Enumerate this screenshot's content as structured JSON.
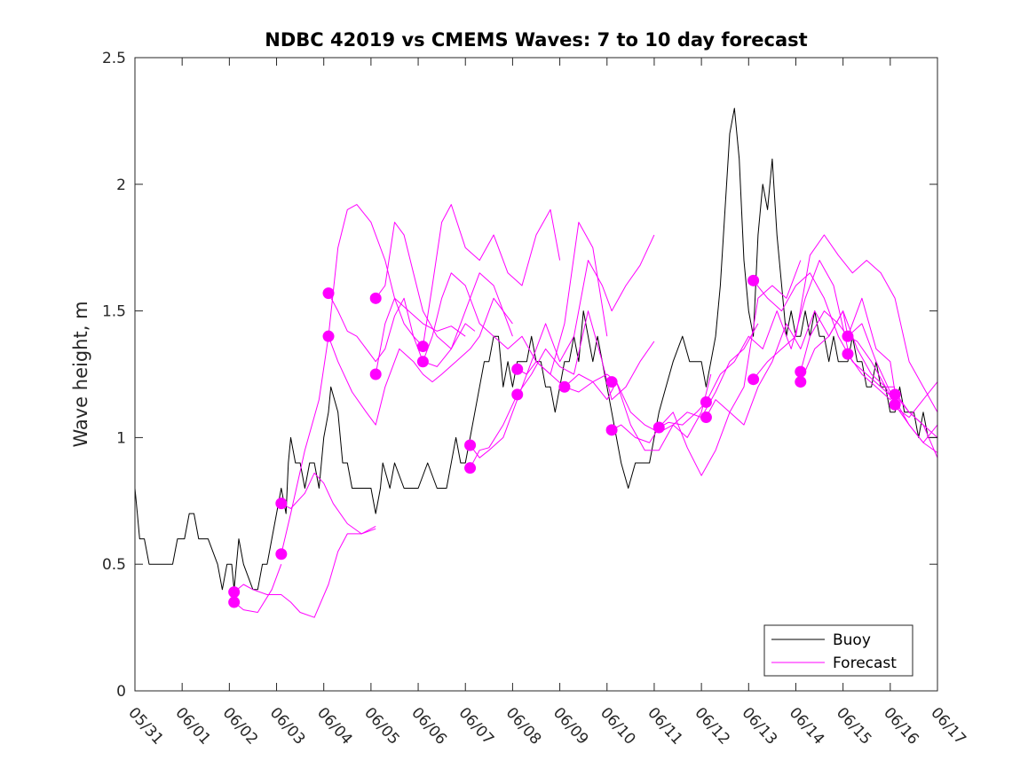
{
  "chart_data": {
    "type": "line",
    "title": "NDBC 42019 vs CMEMS Waves: 7 to 10 day forecast",
    "xlabel": "",
    "ylabel": "Wave height, m",
    "xlim": [
      0,
      17
    ],
    "ylim": [
      0,
      2.5
    ],
    "x_unit": "days since 05/31",
    "x_ticks": [
      0,
      1,
      2,
      3,
      4,
      5,
      6,
      7,
      8,
      9,
      10,
      11,
      12,
      13,
      14,
      15,
      16,
      17
    ],
    "x_tick_labels": [
      "05/31",
      "06/01",
      "06/02",
      "06/03",
      "06/04",
      "06/05",
      "06/06",
      "06/07",
      "06/08",
      "06/09",
      "06/10",
      "06/11",
      "06/12",
      "06/13",
      "06/14",
      "06/15",
      "06/16",
      "06/17"
    ],
    "y_ticks": [
      0,
      0.5,
      1,
      1.5,
      2,
      2.5
    ],
    "y_tick_labels": [
      "0",
      "0.5",
      "1",
      "1.5",
      "2",
      "2.5"
    ],
    "grid": false,
    "legend": {
      "position": "bottom-right",
      "entries": [
        "Buoy",
        "Forecast"
      ]
    },
    "colors": {
      "buoy": "#000000",
      "forecast": "#ff00ff"
    },
    "series": [
      {
        "name": "Buoy",
        "x": [
          0.0,
          0.05,
          0.1,
          0.2,
          0.3,
          0.5,
          0.8,
          0.9,
          1.0,
          1.05,
          1.15,
          1.25,
          1.35,
          1.45,
          1.55,
          1.75,
          1.85,
          1.95,
          2.05,
          2.1,
          2.2,
          2.3,
          2.5,
          2.6,
          2.7,
          2.8,
          2.9,
          3.0,
          3.1,
          3.2,
          3.25,
          3.3,
          3.4,
          3.5,
          3.6,
          3.7,
          3.8,
          3.9,
          4.0,
          4.1,
          4.15,
          4.3,
          4.4,
          4.5,
          4.6,
          4.8,
          5.0,
          5.1,
          5.2,
          5.25,
          5.4,
          5.5,
          5.7,
          5.8,
          6.0,
          6.2,
          6.4,
          6.6,
          6.8,
          6.9,
          7.0,
          7.1,
          7.2,
          7.3,
          7.4,
          7.5,
          7.6,
          7.7,
          7.8,
          7.9,
          8.0,
          8.1,
          8.2,
          8.3,
          8.4,
          8.5,
          8.6,
          8.7,
          8.8,
          8.9,
          9.0,
          9.1,
          9.2,
          9.3,
          9.4,
          9.5,
          9.6,
          9.7,
          9.8,
          9.9,
          10.0,
          10.1,
          10.2,
          10.3,
          10.45,
          10.6,
          10.75,
          10.9,
          11.0,
          11.1,
          11.25,
          11.4,
          11.6,
          11.75,
          11.9,
          12.0,
          12.1,
          12.2,
          12.3,
          12.4,
          12.5,
          12.6,
          12.7,
          12.8,
          12.9,
          13.0,
          13.1,
          13.2,
          13.3,
          13.4,
          13.5,
          13.6,
          13.7,
          13.8,
          13.9,
          14.0,
          14.1,
          14.2,
          14.3,
          14.4,
          14.5,
          14.6,
          14.7,
          14.8,
          14.9,
          15.0,
          15.1,
          15.2,
          15.3,
          15.4,
          15.5,
          15.6,
          15.7,
          15.8,
          15.9,
          16.0,
          16.1,
          16.2,
          16.3,
          16.4,
          16.5,
          16.6,
          16.7,
          16.8,
          16.9,
          17.0
        ],
        "values": [
          0.8,
          0.7,
          0.6,
          0.6,
          0.5,
          0.5,
          0.5,
          0.6,
          0.6,
          0.6,
          0.7,
          0.7,
          0.6,
          0.6,
          0.6,
          0.5,
          0.4,
          0.5,
          0.5,
          0.4,
          0.6,
          0.5,
          0.4,
          0.4,
          0.5,
          0.5,
          0.6,
          0.7,
          0.8,
          0.7,
          0.9,
          1.0,
          0.9,
          0.9,
          0.8,
          0.9,
          0.9,
          0.8,
          1.0,
          1.1,
          1.2,
          1.1,
          0.9,
          0.9,
          0.8,
          0.8,
          0.8,
          0.7,
          0.8,
          0.9,
          0.8,
          0.9,
          0.8,
          0.8,
          0.8,
          0.9,
          0.8,
          0.8,
          1.0,
          0.9,
          0.9,
          1.0,
          1.1,
          1.2,
          1.3,
          1.3,
          1.4,
          1.4,
          1.2,
          1.3,
          1.2,
          1.3,
          1.3,
          1.3,
          1.4,
          1.3,
          1.3,
          1.2,
          1.2,
          1.1,
          1.2,
          1.3,
          1.3,
          1.4,
          1.3,
          1.5,
          1.4,
          1.3,
          1.4,
          1.3,
          1.2,
          1.1,
          1.0,
          0.9,
          0.8,
          0.9,
          0.9,
          0.9,
          1.0,
          1.1,
          1.2,
          1.3,
          1.4,
          1.3,
          1.3,
          1.3,
          1.2,
          1.3,
          1.4,
          1.6,
          1.9,
          2.2,
          2.3,
          2.1,
          1.7,
          1.5,
          1.4,
          1.8,
          2.0,
          1.9,
          2.1,
          1.8,
          1.6,
          1.4,
          1.5,
          1.4,
          1.4,
          1.5,
          1.4,
          1.5,
          1.4,
          1.4,
          1.3,
          1.4,
          1.3,
          1.3,
          1.3,
          1.4,
          1.3,
          1.3,
          1.2,
          1.2,
          1.3,
          1.2,
          1.2,
          1.1,
          1.1,
          1.2,
          1.1,
          1.1,
          1.1,
          1.0,
          1.1,
          1.0,
          1.0,
          1.0
        ]
      },
      {
        "name": "Forecast",
        "x": [
          2.1,
          2.3,
          2.6,
          2.9,
          3.1
        ],
        "values": [
          0.35,
          0.32,
          0.31,
          0.4,
          0.5
        ]
      },
      {
        "x": [
          2.1,
          2.3,
          2.5,
          2.8,
          3.1,
          3.3,
          3.5,
          3.8,
          4.1,
          4.3,
          4.5,
          4.8,
          5.1
        ],
        "values": [
          0.39,
          0.42,
          0.4,
          0.38,
          0.38,
          0.35,
          0.31,
          0.29,
          0.42,
          0.55,
          0.62,
          0.62,
          0.65
        ]
      },
      {
        "x": [
          3.1,
          3.3,
          3.6,
          3.8,
          4.0,
          4.2,
          4.5,
          4.8,
          5.1
        ],
        "values": [
          0.74,
          0.72,
          0.78,
          0.86,
          0.82,
          0.74,
          0.66,
          0.62,
          0.64
        ]
      },
      {
        "x": [
          3.1,
          3.3,
          3.6,
          3.9,
          4.1,
          4.3,
          4.5,
          4.7,
          5.0,
          5.3,
          5.5,
          5.8,
          6.1,
          6.4,
          6.7,
          7.0
        ],
        "values": [
          0.54,
          0.7,
          0.95,
          1.15,
          1.4,
          1.75,
          1.9,
          1.92,
          1.85,
          1.7,
          1.55,
          1.5,
          1.45,
          1.42,
          1.44,
          1.4
        ]
      },
      {
        "x": [
          4.1,
          4.3,
          4.5,
          4.7,
          4.9,
          5.1,
          5.3,
          5.5,
          5.7,
          5.9,
          6.1,
          6.4,
          6.7,
          7.0,
          7.2
        ],
        "values": [
          1.57,
          1.5,
          1.42,
          1.4,
          1.35,
          1.3,
          1.35,
          1.48,
          1.55,
          1.4,
          1.3,
          1.28,
          1.35,
          1.45,
          1.42
        ]
      },
      {
        "x": [
          4.1,
          4.3,
          4.6,
          4.9,
          5.1,
          5.3,
          5.6,
          5.9,
          6.1,
          6.3,
          6.5,
          6.8,
          7.1,
          7.3,
          7.6,
          8.0
        ],
        "values": [
          1.4,
          1.3,
          1.18,
          1.1,
          1.05,
          1.2,
          1.35,
          1.3,
          1.25,
          1.22,
          1.25,
          1.3,
          1.35,
          1.4,
          1.55,
          1.45
        ]
      },
      {
        "x": [
          5.1,
          5.3,
          5.5,
          5.7,
          5.9,
          6.1,
          6.4,
          6.7,
          7.0,
          7.3,
          7.6,
          8.0
        ],
        "values": [
          1.55,
          1.6,
          1.85,
          1.8,
          1.65,
          1.5,
          1.4,
          1.35,
          1.5,
          1.65,
          1.6,
          1.4
        ]
      },
      {
        "x": [
          5.1,
          5.3,
          5.5,
          5.7,
          5.9,
          6.1,
          6.3,
          6.5,
          6.7,
          7.0,
          7.3,
          7.6,
          7.9,
          8.2,
          8.5,
          8.8,
          9.0
        ],
        "values": [
          1.25,
          1.45,
          1.55,
          1.45,
          1.4,
          1.36,
          1.6,
          1.85,
          1.92,
          1.75,
          1.7,
          1.8,
          1.65,
          1.6,
          1.8,
          1.9,
          1.7
        ]
      },
      {
        "x": [
          6.1,
          6.3,
          6.5,
          6.7,
          7.0,
          7.3,
          7.6,
          7.9,
          8.2,
          8.5,
          8.8,
          9.1,
          9.4,
          9.7,
          10.0
        ],
        "values": [
          1.3,
          1.4,
          1.55,
          1.65,
          1.6,
          1.45,
          1.4,
          1.35,
          1.4,
          1.3,
          1.25,
          1.45,
          1.85,
          1.75,
          1.4
        ]
      },
      {
        "x": [
          7.1,
          7.3,
          7.5,
          7.8,
          8.1,
          8.4,
          8.7,
          9.0,
          9.3,
          9.6,
          9.9,
          10.1,
          10.4,
          10.7,
          11.0
        ],
        "values": [
          0.97,
          0.92,
          0.95,
          1.0,
          1.15,
          1.3,
          1.45,
          1.3,
          1.4,
          1.7,
          1.6,
          1.5,
          1.6,
          1.68,
          1.8
        ]
      },
      {
        "x": [
          7.1,
          7.3,
          7.5,
          7.8,
          8.1,
          8.4,
          8.7,
          9.0,
          9.3,
          9.6,
          9.9,
          10.1,
          10.4,
          10.7,
          11.0
        ],
        "values": [
          0.88,
          0.95,
          0.96,
          1.05,
          1.17,
          1.25,
          1.35,
          1.28,
          1.25,
          1.5,
          1.3,
          1.15,
          1.2,
          1.3,
          1.38
        ]
      },
      {
        "x": [
          8.1,
          8.3,
          8.5,
          8.8,
          9.1,
          9.4,
          9.7,
          10.0,
          10.2,
          10.5,
          10.8,
          11.1,
          11.4,
          11.7,
          12.0,
          12.2
        ],
        "values": [
          1.27,
          1.25,
          1.3,
          1.25,
          1.2,
          1.25,
          1.22,
          1.15,
          1.22,
          1.05,
          0.95,
          0.95,
          1.05,
          1.0,
          1.1,
          1.25
        ]
      },
      {
        "x": [
          9.1,
          9.4,
          9.7,
          10.0,
          10.2,
          10.5,
          10.8,
          11.1,
          11.4,
          11.7,
          12.0,
          12.3,
          12.6,
          12.9,
          13.2
        ],
        "values": [
          1.2,
          1.18,
          1.22,
          1.25,
          1.22,
          1.1,
          1.05,
          1.02,
          1.05,
          1.1,
          1.08,
          1.18,
          1.3,
          1.35,
          1.45
        ]
      },
      {
        "x": [
          10.1,
          10.3,
          10.6,
          10.9,
          11.1,
          11.4,
          11.7,
          12.0,
          12.3,
          12.6,
          12.9,
          13.2,
          13.5,
          13.8,
          14.1
        ],
        "values": [
          1.03,
          1.05,
          1.0,
          0.98,
          1.04,
          1.1,
          0.96,
          0.85,
          0.95,
          1.1,
          1.2,
          1.55,
          1.6,
          1.55,
          1.7
        ]
      },
      {
        "x": [
          11.1,
          11.3,
          11.6,
          11.9,
          12.1,
          12.4,
          12.7,
          13.0,
          13.3,
          13.6,
          13.9,
          14.2,
          14.5,
          14.8,
          15.1
        ],
        "values": [
          1.04,
          1.06,
          1.05,
          1.1,
          1.14,
          1.25,
          1.3,
          1.4,
          1.35,
          1.5,
          1.35,
          1.55,
          1.7,
          1.6,
          1.35
        ]
      },
      {
        "x": [
          12.1,
          12.3,
          12.6,
          12.9,
          13.2,
          13.5,
          13.8,
          14.1,
          14.4,
          14.7,
          15.0,
          15.3,
          15.6,
          15.9,
          16.1
        ],
        "values": [
          1.08,
          1.15,
          1.1,
          1.05,
          1.2,
          1.3,
          1.45,
          1.35,
          1.5,
          1.4,
          1.5,
          1.35,
          1.25,
          1.2,
          1.2
        ]
      },
      {
        "x": [
          13.1,
          13.4,
          13.7,
          14.0,
          14.3,
          14.6,
          14.9,
          15.2,
          15.5,
          15.8,
          16.1,
          16.4,
          16.7,
          17.0
        ],
        "values": [
          1.62,
          1.55,
          1.5,
          1.6,
          1.65,
          1.55,
          1.4,
          1.3,
          1.25,
          1.2,
          1.15,
          1.05,
          0.98,
          1.05
        ]
      },
      {
        "x": [
          13.1,
          13.4,
          13.7,
          14.0,
          14.3,
          14.6,
          14.9,
          15.2,
          15.5,
          15.8,
          16.1,
          16.4,
          16.7,
          17.0
        ],
        "values": [
          1.23,
          1.3,
          1.35,
          1.4,
          1.72,
          1.8,
          1.72,
          1.65,
          1.7,
          1.65,
          1.55,
          1.3,
          1.2,
          1.1
        ]
      },
      {
        "x": [
          14.1,
          14.3,
          14.6,
          14.9,
          15.1,
          15.4,
          15.7,
          16.0,
          16.1,
          16.4,
          16.7,
          17.0
        ],
        "values": [
          1.26,
          1.4,
          1.5,
          1.45,
          1.4,
          1.55,
          1.35,
          1.3,
          1.18,
          1.1,
          1.05,
          0.92
        ]
      },
      {
        "x": [
          14.1,
          14.4,
          14.7,
          15.0,
          15.1,
          15.4,
          15.7,
          16.0,
          16.1,
          16.4,
          16.7,
          17.0
        ],
        "values": [
          1.22,
          1.35,
          1.4,
          1.5,
          1.4,
          1.45,
          1.3,
          1.18,
          1.12,
          1.08,
          1.15,
          1.22
        ]
      },
      {
        "x": [
          15.1,
          15.4,
          15.7,
          16.0,
          16.1,
          16.4,
          16.7,
          17.0
        ],
        "values": [
          1.33,
          1.25,
          1.2,
          1.15,
          1.17,
          1.1,
          1.05,
          1.0
        ]
      },
      {
        "x": [
          15.1,
          15.3,
          15.6,
          15.9,
          16.1,
          16.4,
          16.7,
          17.0
        ],
        "values": [
          1.4,
          1.38,
          1.3,
          1.2,
          1.13,
          1.05,
          0.98,
          0.94
        ]
      }
    ],
    "markers": {
      "x": [
        2.1,
        2.1,
        3.1,
        3.1,
        4.1,
        4.1,
        5.1,
        5.1,
        6.1,
        6.1,
        7.1,
        7.1,
        8.1,
        8.1,
        9.1,
        10.1,
        10.1,
        11.1,
        12.1,
        12.1,
        13.1,
        13.1,
        14.1,
        14.1,
        15.1,
        15.1,
        16.1,
        16.1
      ],
      "values": [
        0.39,
        0.35,
        0.74,
        0.54,
        1.57,
        1.4,
        1.55,
        1.25,
        1.36,
        1.3,
        0.97,
        0.88,
        1.27,
        1.17,
        1.2,
        1.22,
        1.03,
        1.04,
        1.14,
        1.08,
        1.62,
        1.23,
        1.26,
        1.22,
        1.4,
        1.33,
        1.17,
        1.13
      ]
    }
  }
}
